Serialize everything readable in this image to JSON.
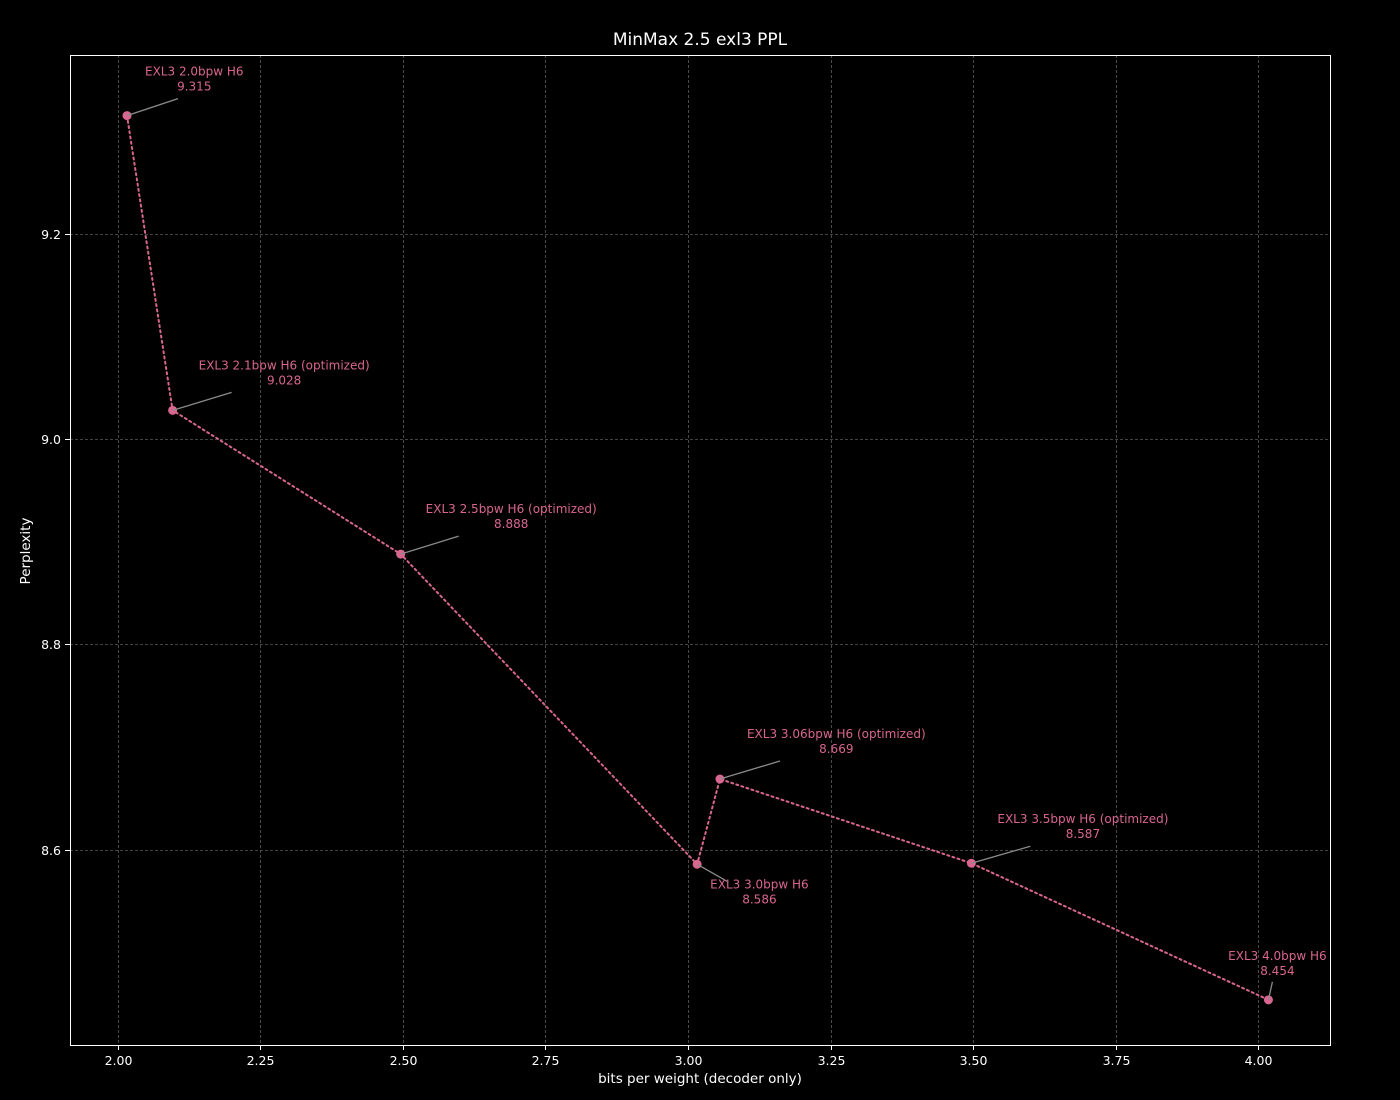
{
  "chart_data": {
    "type": "line",
    "title": "MinMax 2.5 exl3 PPL",
    "xlabel": "bits per weight (decoder only)",
    "ylabel": "Perplexity",
    "xlim": [
      1.916,
      4.126
    ],
    "ylim": [
      8.41,
      9.374
    ],
    "xticks": [
      2.0,
      2.25,
      2.5,
      2.75,
      3.0,
      3.25,
      3.5,
      3.75,
      4.0
    ],
    "xtick_labels": [
      "2.00",
      "2.25",
      "2.50",
      "2.75",
      "3.00",
      "3.25",
      "3.50",
      "3.75",
      "4.00"
    ],
    "yticks": [
      8.6,
      8.8,
      9.0,
      9.2
    ],
    "ytick_labels": [
      "8.6",
      "8.8",
      "9.0",
      "9.2"
    ],
    "grid": true,
    "legend": null,
    "line_style": "dotted",
    "series": [
      {
        "name": "EXL3",
        "color": "#d8668f",
        "points": [
          {
            "x": 2.016,
            "y": 9.315,
            "label": "EXL3 2.0bpw H6",
            "value_label": "9.315",
            "text_dx": 18,
            "text_dy": -40,
            "anchor": "start"
          },
          {
            "x": 2.096,
            "y": 9.028,
            "label": "EXL3 2.1bpw H6 (optimized)",
            "value_label": "9.028",
            "text_dx": 26,
            "text_dy": -41,
            "anchor": "start"
          },
          {
            "x": 2.496,
            "y": 8.888,
            "label": "EXL3 2.5bpw H6 (optimized)",
            "value_label": "8.888",
            "text_dx": 25,
            "text_dy": -41,
            "anchor": "start"
          },
          {
            "x": 3.016,
            "y": 8.586,
            "label": "EXL3 3.0bpw H6",
            "value_label": "8.586",
            "text_dx": 13,
            "text_dy": 24,
            "anchor": "start"
          },
          {
            "x": 3.056,
            "y": 8.669,
            "label": "EXL3 3.06bpw H6 (optimized)",
            "value_label": "8.669",
            "text_dx": 27,
            "text_dy": -41,
            "anchor": "start"
          },
          {
            "x": 3.497,
            "y": 8.587,
            "label": "EXL3 3.5bpw H6 (optimized)",
            "value_label": "8.587",
            "text_dx": 26,
            "text_dy": -40,
            "anchor": "start"
          },
          {
            "x": 4.018,
            "y": 8.454,
            "label": "EXL3 4.0bpw H6",
            "value_label": "8.454",
            "text_dx": 9,
            "text_dy": -40,
            "anchor": "middle"
          }
        ]
      }
    ]
  },
  "style": {
    "background": "#000000",
    "axis_color": "#ffffff",
    "grid_color": "#5a5a5a",
    "connector_color": "#8a8a8a",
    "annotation_color": "#d8668f"
  }
}
